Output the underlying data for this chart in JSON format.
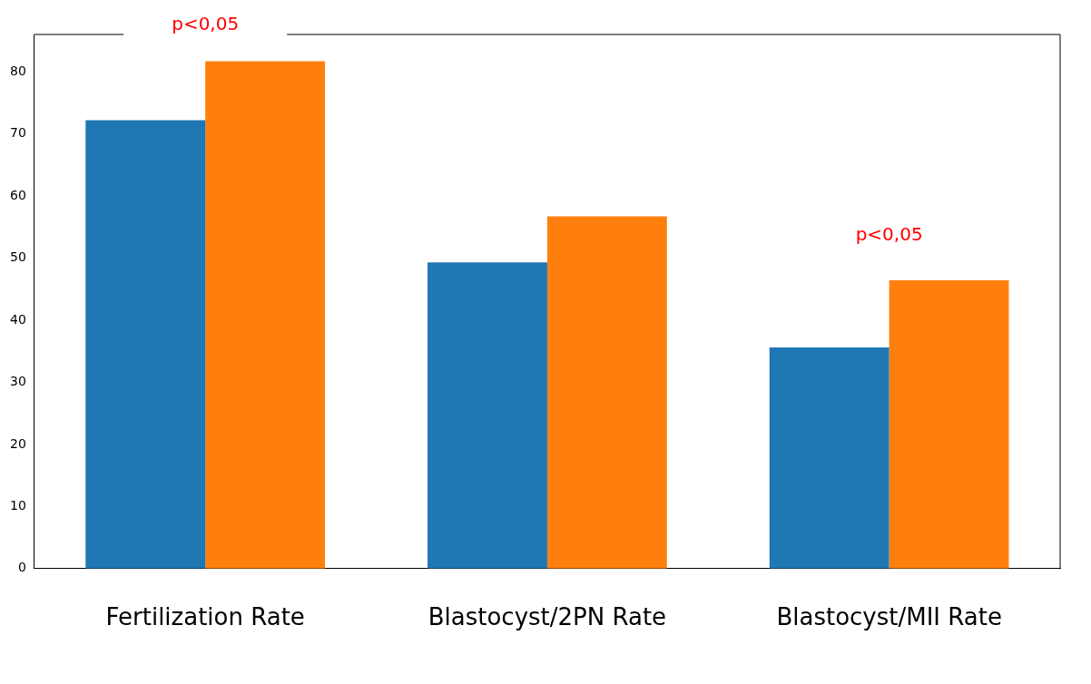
{
  "chart_data": {
    "type": "bar",
    "categories": [
      "Fertilization Rate",
      "Blastocyst/2PN Rate",
      "Blastocyst/MII Rate"
    ],
    "series": [
      {
        "color": "#1f77b4",
        "values": [
          72.2,
          49.3,
          35.6
        ]
      },
      {
        "color": "#ff7f0e",
        "values": [
          81.7,
          56.7,
          46.4
        ]
      }
    ],
    "ylim": [
      0,
      86
    ],
    "yticks": [
      0,
      10,
      20,
      30,
      40,
      50,
      60,
      70,
      80
    ],
    "grid": false,
    "legend": false,
    "annotations": [
      "p<0,05",
      "p<0,05"
    ]
  }
}
